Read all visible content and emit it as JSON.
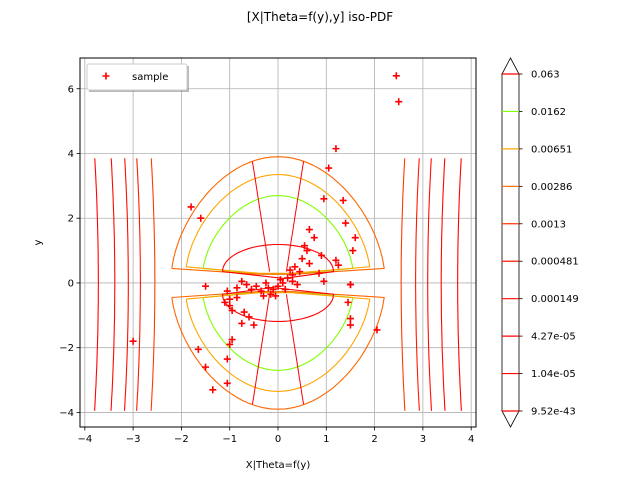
{
  "chart_data": {
    "type": "contour",
    "title": "[X|Theta=f(y),y] iso-PDF",
    "xlabel": "X|Theta=f(y)",
    "ylabel": "y",
    "xlim": [
      -4.1,
      4.1
    ],
    "ylim": [
      -4.45,
      6.95
    ],
    "xticks": [
      -4,
      -3,
      -2,
      -1,
      0,
      1,
      2,
      3,
      4
    ],
    "yticks": [
      -4,
      -2,
      0,
      2,
      4,
      6
    ],
    "grid": true,
    "legend": {
      "position": "top-left",
      "entries": [
        {
          "label": "sample",
          "marker": "+",
          "color": "#ff0000"
        }
      ]
    },
    "colorbar": {
      "levels": [
        "0.063",
        "0.0162",
        "0.00651",
        "0.00286",
        "0.0013",
        "0.000481",
        "0.000149",
        "4.27e-05",
        "1.04e-05",
        "9.52e-43"
      ],
      "colors": [
        "#ff0000",
        "#80ff00",
        "#ffa500",
        "#ff6600",
        "#ff3a00",
        "#ff1a00",
        "#ff0d00",
        "#ff0800",
        "#ff0400",
        "#ff0000"
      ],
      "extend": "both"
    },
    "contours": [
      {
        "level": "0.0162",
        "color": "#80ff00",
        "kind": "hyperbola",
        "a": 1.55,
        "b": 2.7,
        "h": 0.45,
        "w": 0.6
      },
      {
        "level": "0.00651",
        "color": "#ffa500",
        "kind": "hyperbola",
        "a": 1.9,
        "b": 3.35,
        "h": 0.5,
        "w": 0.5
      },
      {
        "level": "0.00286",
        "color": "#ff6600",
        "kind": "hyperbola",
        "a": 2.2,
        "b": 3.9,
        "h": 0.45,
        "w": 0.45
      },
      {
        "level": "0.0013",
        "color": "#ff3a00",
        "kind": "vlines",
        "x": [
          -2.55,
          2.55
        ]
      },
      {
        "level": "0.000481",
        "color": "#ff1a00",
        "kind": "vlines",
        "x": [
          -2.85,
          2.85
        ]
      },
      {
        "level": "0.000149",
        "color": "#ff0d00",
        "kind": "vlines",
        "x": [
          -3.1,
          3.1
        ]
      },
      {
        "level": "4.27e-05",
        "color": "#ff0800",
        "kind": "vlines",
        "x": [
          -3.38,
          3.38
        ]
      },
      {
        "level": "1.04e-05",
        "color": "#ff0400",
        "kind": "vlines",
        "x": [
          -3.72,
          3.72
        ]
      },
      {
        "level": "0.063",
        "color": "#ff0000",
        "kind": "loop",
        "rx": 1.15,
        "ry": 1.75,
        "h": 0.35,
        "w": 0.7
      }
    ],
    "series": [
      {
        "name": "sample",
        "marker": "+",
        "color": "#ff0000",
        "points": [
          [
            2.45,
            6.4
          ],
          [
            2.5,
            5.6
          ],
          [
            1.2,
            4.15
          ],
          [
            1.05,
            3.55
          ],
          [
            -1.8,
            2.35
          ],
          [
            -1.6,
            2.0
          ],
          [
            0.95,
            2.6
          ],
          [
            1.35,
            2.55
          ],
          [
            0.65,
            1.65
          ],
          [
            0.75,
            1.4
          ],
          [
            1.4,
            1.85
          ],
          [
            1.6,
            1.4
          ],
          [
            1.55,
            1.0
          ],
          [
            0.55,
            1.15
          ],
          [
            0.6,
            1.0
          ],
          [
            0.9,
            0.85
          ],
          [
            0.5,
            0.75
          ],
          [
            0.65,
            0.6
          ],
          [
            1.2,
            0.7
          ],
          [
            1.25,
            0.55
          ],
          [
            0.35,
            0.5
          ],
          [
            0.45,
            0.35
          ],
          [
            0.3,
            0.25
          ],
          [
            0.2,
            0.15
          ],
          [
            0.85,
            0.3
          ],
          [
            0.95,
            0.05
          ],
          [
            1.5,
            -0.05
          ],
          [
            0.4,
            -0.05
          ],
          [
            0.1,
            0.0
          ],
          [
            0.0,
            -0.1
          ],
          [
            -0.1,
            -0.2
          ],
          [
            -0.2,
            -0.15
          ],
          [
            -0.35,
            -0.25
          ],
          [
            -0.45,
            -0.1
          ],
          [
            -0.55,
            -0.2
          ],
          [
            -0.65,
            -0.05
          ],
          [
            -0.75,
            0.05
          ],
          [
            -0.85,
            -0.15
          ],
          [
            -0.3,
            -0.4
          ],
          [
            -0.15,
            -0.35
          ],
          [
            -1.5,
            -0.1
          ],
          [
            -1.05,
            -0.25
          ],
          [
            -1.0,
            -0.5
          ],
          [
            -0.85,
            -0.45
          ],
          [
            -1.1,
            -0.6
          ],
          [
            -0.95,
            -0.85
          ],
          [
            -1.0,
            -0.7
          ],
          [
            -0.7,
            -0.9
          ],
          [
            -0.75,
            -1.25
          ],
          [
            -0.6,
            -1.05
          ],
          [
            -0.5,
            -1.3
          ],
          [
            -0.05,
            -0.4
          ],
          [
            -0.95,
            -1.75
          ],
          [
            -1.0,
            -1.9
          ],
          [
            -1.65,
            -2.05
          ],
          [
            -1.05,
            -2.35
          ],
          [
            -1.5,
            -2.6
          ],
          [
            -1.05,
            -3.1
          ],
          [
            -1.35,
            -3.3
          ],
          [
            -3.0,
            -1.8
          ],
          [
            2.05,
            -1.45
          ],
          [
            1.5,
            -1.1
          ],
          [
            1.5,
            -1.3
          ],
          [
            1.45,
            -0.6
          ],
          [
            1.5,
            -0.05
          ],
          [
            0.25,
            0.4
          ],
          [
            0.05,
            0.1
          ],
          [
            -0.25,
            0.0
          ],
          [
            0.15,
            -0.2
          ],
          [
            0.3,
            0.05
          ]
        ]
      }
    ]
  }
}
